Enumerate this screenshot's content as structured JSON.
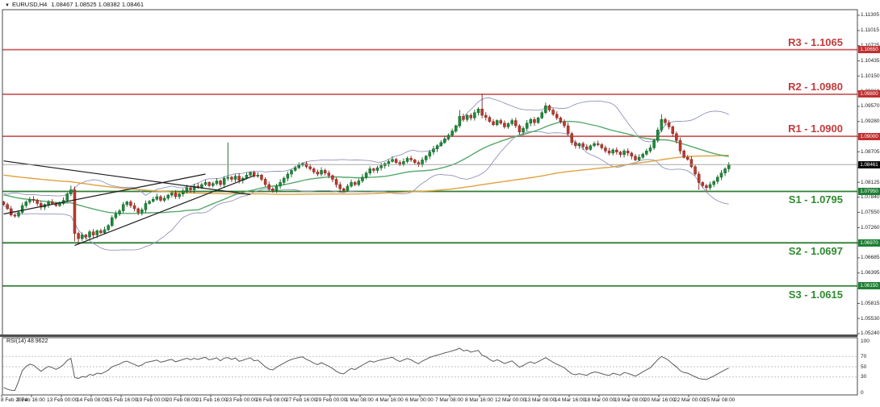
{
  "title": {
    "symbol": "EURUSD,H4",
    "ohlc": "1.08467 1.08525 1.08382 1.08461"
  },
  "rsi_label": "RSI(14) 48.9622",
  "colors": {
    "background": "#ffffff",
    "border": "#4a4a4a",
    "resistance_line": "#cd5c5c",
    "support_line": "#2e7d32",
    "resistance_text": "#c43b3b",
    "support_text": "#2e8b2e",
    "resistance_badge": "#c03030",
    "support_badge": "#1e7e34",
    "bull_fill": "#1e8c3a",
    "bull_stroke": "#0d5c22",
    "bear_fill": "#c0392b",
    "bear_stroke": "#7e2220",
    "bollinger": "#9095bb",
    "ma_fast": "#55a86b",
    "ma_slow": "#e0a23e",
    "trendline": "#1b1b1b",
    "current_line": "#9a9a9a",
    "current_badge": "#0a0a0a",
    "rsi_line": "#5a5a5a",
    "rsi_level": "#c2c2ce"
  },
  "chart_data": {
    "type": "candlestick",
    "symbol": "EURUSD",
    "timeframe": "H4",
    "ohlc_display": {
      "open": "1.08467",
      "high": "1.08525",
      "low": "1.08382",
      "close": "1.08461"
    },
    "y_range": [
      1.0519,
      1.1141
    ],
    "price_ticks": [
      "1.11305",
      "1.11015",
      "1.10725",
      "1.10435",
      "1.10150",
      "1.09860",
      "1.09570",
      "1.09280",
      "1.08990",
      "1.08705",
      "1.08415",
      "1.08125",
      "1.07840",
      "1.07550",
      "1.07260",
      "1.06970",
      "1.06685",
      "1.06395",
      "1.06105",
      "1.05815",
      "1.05530",
      "1.05240"
    ],
    "x_labels": [
      "8 Feb 2024",
      "9 Feb 16:00",
      "13 Feb 00:00",
      "14 Feb 08:00",
      "15 Feb 16:00",
      "19 Feb 00:00",
      "20 Feb 08:00",
      "21 Feb 16:00",
      "23 Feb 00:00",
      "26 Feb 08:00",
      "27 Feb 16:00",
      "29 Feb 00:00",
      "1 Mar 08:00",
      "4 Mar 16:00",
      "6 Mar 00:00",
      "7 Mar 08:00",
      "8 Mar 16:00",
      "12 Mar 00:00",
      "13 Mar 08:00",
      "14 Mar 16:00",
      "18 Mar 00:00",
      "19 Mar 08:00",
      "20 Mar 16:00",
      "22 Mar 00:00",
      "25 Mar 08:00"
    ],
    "sr": {
      "resistance": [
        {
          "name": "R3",
          "label": "R3 - 1.1065",
          "value": 1.1065,
          "badge": "1.10650"
        },
        {
          "name": "R2",
          "label": "R2 - 1.0980",
          "value": 1.098,
          "badge": "1.09800"
        },
        {
          "name": "R1",
          "label": "R1 - 1.0900",
          "value": 1.09,
          "badge": "1.09000"
        }
      ],
      "support": [
        {
          "name": "S1",
          "label": "S1 - 1.0795",
          "value": 1.0795,
          "badge": "1.07950"
        },
        {
          "name": "S2",
          "label": "S2 - 1.0697",
          "value": 1.0697,
          "badge": "1.06970"
        },
        {
          "name": "S3",
          "label": "S3 - 1.0615",
          "value": 1.0615,
          "badge": "1.06150"
        }
      ]
    },
    "current_price": {
      "value": 1.08461,
      "label": "1.08461"
    },
    "first_open": 1.0775,
    "closes": [
      1.077,
      1.0762,
      1.075,
      1.0748,
      1.0755,
      1.0768,
      1.0775,
      1.078,
      1.0778,
      1.0772,
      1.0765,
      1.077,
      1.0775,
      1.0772,
      1.0768,
      1.0772,
      1.0778,
      1.079,
      1.0798,
      1.0715,
      1.0705,
      1.0712,
      1.0708,
      1.0718,
      1.0712,
      1.072,
      1.0716,
      1.0722,
      1.073,
      1.0745,
      1.0752,
      1.0758,
      1.077,
      1.0775,
      1.0768,
      1.0762,
      1.0755,
      1.076,
      1.0772,
      1.0776,
      1.078,
      1.0785,
      1.0778,
      1.0782,
      1.0788,
      1.0792,
      1.0785,
      1.079,
      1.0796,
      1.0802,
      1.0798,
      1.0805,
      1.0802,
      1.0808,
      1.0812,
      1.0806,
      1.081,
      1.0815,
      1.0808,
      1.082,
      1.0822,
      1.0818,
      1.0824,
      1.0816,
      1.082,
      1.0826,
      1.0831,
      1.0824,
      1.0826,
      1.0818,
      1.0808,
      1.08,
      1.0797,
      1.0805,
      1.0812,
      1.082,
      1.0828,
      1.0835,
      1.084,
      1.0845,
      1.0848,
      1.0842,
      1.0838,
      1.0832,
      1.0828,
      1.0835,
      1.083,
      1.0825,
      1.0818,
      1.0808,
      1.08,
      1.0797,
      1.0805,
      1.0812,
      1.0808,
      1.0815,
      1.0822,
      1.083,
      1.0838,
      1.0835,
      1.084,
      1.0844,
      1.0848,
      1.0852,
      1.0856,
      1.085,
      1.0846,
      1.0852,
      1.0858,
      1.0855,
      1.085,
      1.0846,
      1.0855,
      1.0862,
      1.087,
      1.0876,
      1.0882,
      1.0888,
      1.0895,
      1.0902,
      1.091,
      1.092,
      1.0938,
      1.0932,
      1.094,
      1.0935,
      1.0945,
      1.0952,
      1.094,
      1.0936,
      1.0928,
      1.0922,
      1.093,
      1.0925,
      1.0918,
      1.0924,
      1.093,
      1.092,
      1.0908,
      1.0915,
      1.0925,
      1.0932,
      1.0926,
      1.0935,
      1.0945,
      1.0958,
      1.095,
      1.0942,
      1.0935,
      1.0928,
      1.092,
      1.0905,
      1.0888,
      1.0882,
      1.0886,
      1.088,
      1.0875,
      1.0882,
      1.0886,
      1.0884,
      1.0878,
      1.0872,
      1.0868,
      1.0874,
      1.087,
      1.0865,
      1.0872,
      1.0868,
      1.0862,
      1.0855,
      1.086,
      1.0866,
      1.0872,
      1.0878,
      1.0892,
      1.0912,
      1.0932,
      1.0926,
      1.0918,
      1.0905,
      1.0892,
      1.0872,
      1.086,
      1.0856,
      1.0842,
      1.0828,
      1.0812,
      1.0806,
      1.0802,
      1.0808,
      1.0814,
      1.0822,
      1.083,
      1.0838,
      1.0846
    ],
    "special_wicks": {
      "18": {
        "high": 1.0806
      },
      "19": {
        "low": 1.07
      },
      "20": {
        "low": 1.0695
      },
      "60": {
        "high": 1.0888
      },
      "122": {
        "high": 1.095
      },
      "128": {
        "high": 1.0981
      },
      "145": {
        "high": 1.0964
      },
      "176": {
        "high": 1.0942
      },
      "186": {
        "low": 1.0798
      },
      "188": {
        "low": 1.0795
      }
    },
    "trendlines": [
      {
        "from_bar": 0,
        "from_price": 1.0853,
        "to_bar": 66,
        "to_price": 1.0789,
        "direction": "descending"
      },
      {
        "from_bar": 19,
        "from_price": 1.0692,
        "to_bar": 67,
        "to_price": 1.0825,
        "direction": "ascending"
      },
      {
        "from_bar": 0,
        "from_price": 1.0752,
        "to_bar": 54,
        "to_price": 1.0828,
        "direction": "ascending"
      }
    ],
    "indicators": {
      "bollinger": {
        "period": 20,
        "deviation": 2
      },
      "ma_fast_period": 34,
      "ma_slow_period": 144,
      "rsi": {
        "period": 14,
        "value": 48.9622,
        "levels": [
          30,
          50,
          70
        ],
        "axis_labels": [
          "100",
          "70",
          "50",
          "30",
          "0"
        ]
      }
    },
    "prehistory_seed": {
      "bars": 150,
      "from": 1.088,
      "to": 1.0778,
      "wiggle": 0.0008
    }
  }
}
